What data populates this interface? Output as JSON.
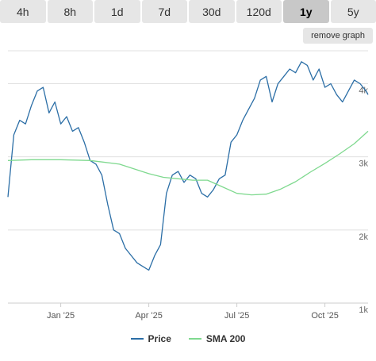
{
  "tabs": [
    {
      "label": "4h",
      "active": false
    },
    {
      "label": "8h",
      "active": false
    },
    {
      "label": "1d",
      "active": false
    },
    {
      "label": "7d",
      "active": false
    },
    {
      "label": "30d",
      "active": false
    },
    {
      "label": "120d",
      "active": false
    },
    {
      "label": "1y",
      "active": true
    },
    {
      "label": "5y",
      "active": false
    }
  ],
  "remove_graph_label": "remove graph",
  "colors": {
    "price": "#2b6ea6",
    "sma": "#7fd98f",
    "grid": "#e0e0e0",
    "axis": "#cccccc"
  },
  "chart_data": {
    "type": "line",
    "x_tick_labels": [
      "Jan '25",
      "Apr '25",
      "Jul '25",
      "Oct '25"
    ],
    "x_tick_positions": [
      1.0,
      4.0,
      7.0,
      10.0
    ],
    "xlim": [
      -0.8,
      11.47
    ],
    "ylim": [
      1000,
      4450
    ],
    "y_ticks": [
      {
        "value": 1000,
        "label": "1k"
      },
      {
        "value": 2000,
        "label": "2k"
      },
      {
        "value": 3000,
        "label": "3k"
      },
      {
        "value": 4000,
        "label": "4k"
      }
    ],
    "series": [
      {
        "name": "Price",
        "x": [
          -0.8,
          -0.6,
          -0.4,
          -0.2,
          0.0,
          0.2,
          0.4,
          0.6,
          0.8,
          1.0,
          1.2,
          1.4,
          1.6,
          1.8,
          2.0,
          2.2,
          2.4,
          2.6,
          2.8,
          3.0,
          3.2,
          3.4,
          3.6,
          3.8,
          4.0,
          4.2,
          4.4,
          4.6,
          4.8,
          5.0,
          5.2,
          5.4,
          5.6,
          5.8,
          6.0,
          6.2,
          6.4,
          6.6,
          6.8,
          7.0,
          7.2,
          7.4,
          7.6,
          7.8,
          8.0,
          8.2,
          8.4,
          8.6,
          8.8,
          9.0,
          9.2,
          9.4,
          9.6,
          9.8,
          10.0,
          10.2,
          10.4,
          10.6,
          10.8,
          11.0,
          11.2,
          11.4,
          11.47
        ],
        "y": [
          2450,
          3300,
          3500,
          3450,
          3700,
          3900,
          3950,
          3600,
          3750,
          3450,
          3550,
          3350,
          3400,
          3200,
          2950,
          2900,
          2750,
          2350,
          2000,
          1950,
          1750,
          1650,
          1550,
          1500,
          1450,
          1650,
          1800,
          2500,
          2750,
          2800,
          2650,
          2750,
          2700,
          2500,
          2450,
          2550,
          2700,
          2750,
          3200,
          3300,
          3500,
          3650,
          3800,
          4050,
          4100,
          3750,
          4000,
          4100,
          4200,
          4150,
          4300,
          4250,
          4050,
          4200,
          3950,
          4000,
          3850,
          3750,
          3900,
          4050,
          4000,
          3900,
          3850
        ],
        "note_incomplete": false
      },
      {
        "name": "SMA 200",
        "x": [
          -0.8,
          0.0,
          1.0,
          2.0,
          3.0,
          4.0,
          4.5,
          5.0,
          5.5,
          6.0,
          6.5,
          7.0,
          7.5,
          8.0,
          8.5,
          9.0,
          9.5,
          10.0,
          10.5,
          11.0,
          11.47
        ],
        "y": [
          2950,
          2960,
          2960,
          2950,
          2900,
          2770,
          2720,
          2700,
          2680,
          2680,
          2590,
          2500,
          2480,
          2490,
          2560,
          2660,
          2790,
          2910,
          3040,
          3180,
          3350
        ]
      }
    ]
  },
  "legend": [
    {
      "name": "Price"
    },
    {
      "name": "SMA 200"
    }
  ]
}
